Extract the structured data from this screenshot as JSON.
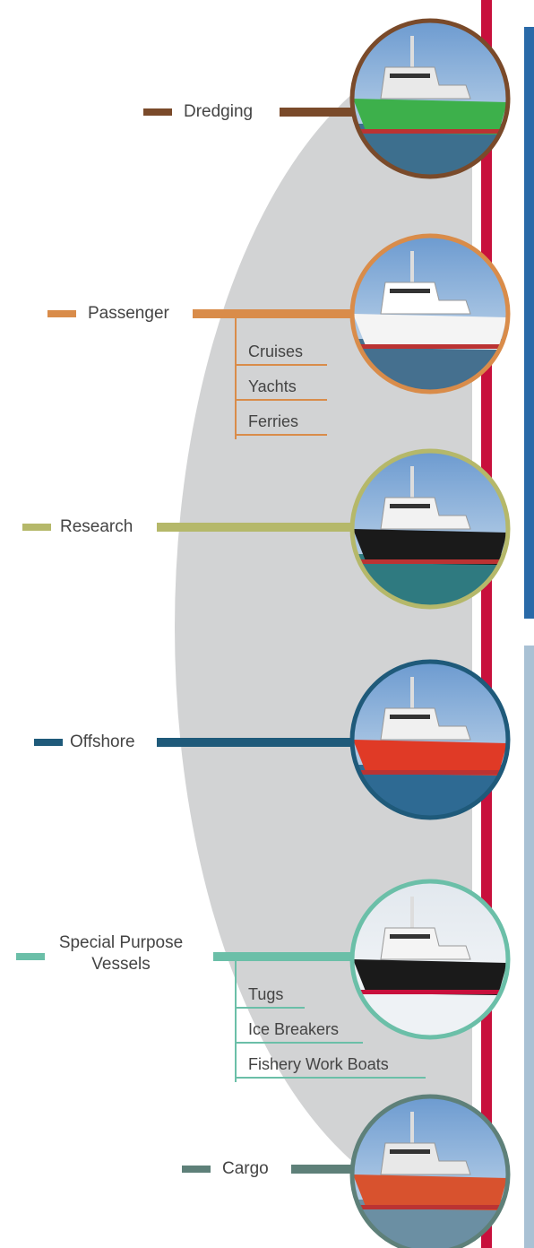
{
  "categories": [
    {
      "label": "Dredging",
      "color": "#7a4a2a",
      "items": []
    },
    {
      "label": "Passenger",
      "color": "#d98c4a",
      "items": [
        "Cruises",
        "Yachts",
        "Ferries"
      ]
    },
    {
      "label": "Research",
      "color": "#b5b86a",
      "items": []
    },
    {
      "label": "Offshore",
      "color": "#1f5a7a",
      "items": []
    },
    {
      "label": "Special Purpose Vessels",
      "color": "#6bbfa8",
      "items": [
        "Tugs",
        "Ice Breakers",
        "Fishery Work Boats"
      ]
    },
    {
      "label": "Cargo",
      "color": "#5e8079",
      "items": []
    }
  ]
}
